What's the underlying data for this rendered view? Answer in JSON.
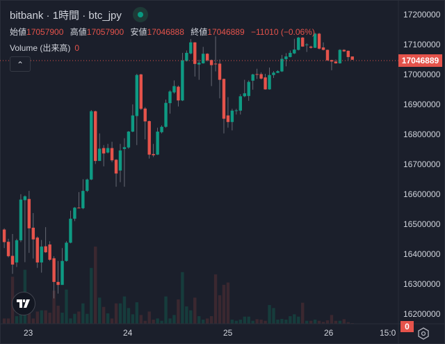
{
  "header": {
    "title": "bitbank · 1時間 · btc_jpy",
    "ohlc": [
      {
        "label": "始値",
        "value": "17057900"
      },
      {
        "label": "高値",
        "value": "17057900"
      },
      {
        "label": "安値",
        "value": "17046888"
      },
      {
        "label": "終値",
        "value": "17046889"
      }
    ],
    "change": "−11010 (−0.06%)",
    "volume_label": "Volume (出来高)",
    "volume_value": "0"
  },
  "price_axis": {
    "ticks": [
      "17200000",
      "17100000",
      "17000000",
      "16900000",
      "16800000",
      "16700000",
      "16600000",
      "16500000",
      "16400000",
      "16300000",
      "16200000"
    ],
    "last_price": "17046889",
    "volume_tag": "0"
  },
  "time_axis": {
    "ticks": [
      "23",
      "24",
      "25",
      "26",
      "15:0"
    ]
  },
  "colors": {
    "up": "#0e9a83",
    "down": "#e5534b",
    "up_vol": "#163c3c",
    "down_vol": "#3b2830",
    "background": "#1b1f2b"
  },
  "chart_data": {
    "type": "candlestick",
    "symbol": "btc_jpy",
    "interval": "1h",
    "unit_note": "OHLC values in thousands of JPY",
    "ylim": [
      16175000,
      17225000
    ],
    "candles_ohlc": [
      [
        16480,
        16484,
        16418,
        16438
      ],
      [
        16439,
        16449,
        16387,
        16391
      ],
      [
        16392,
        16465,
        16332,
        16363
      ],
      [
        16370,
        16449,
        16355,
        16444
      ],
      [
        16444,
        16598,
        16438,
        16580
      ],
      [
        16578,
        16594,
        16371,
        16591
      ],
      [
        16582,
        16609,
        16402,
        16484
      ],
      [
        16486,
        16535,
        16383,
        16447
      ],
      [
        16453,
        16457,
        16352,
        16370
      ],
      [
        16370,
        16445,
        16336,
        16423
      ],
      [
        16424,
        16488,
        16402,
        16404
      ],
      [
        16430,
        16441,
        16375,
        16379
      ],
      [
        16384,
        16391,
        16250,
        16305
      ],
      [
        16305,
        16375,
        16266,
        16295
      ],
      [
        16295,
        16418,
        16295,
        16375
      ],
      [
        16375,
        16441,
        16373,
        16436
      ],
      [
        16436,
        16543,
        16434,
        16516
      ],
      [
        16516,
        16555,
        16508,
        16553
      ],
      [
        16553,
        16605,
        16551,
        16552
      ],
      [
        16551,
        16648,
        16548,
        16609
      ],
      [
        16609,
        16650,
        16605,
        16647
      ],
      [
        16647,
        16879,
        16645,
        16875
      ],
      [
        16875,
        16877,
        16699,
        16709
      ],
      [
        16709,
        16801,
        16709,
        16750
      ],
      [
        16752,
        16762,
        16691,
        16734
      ],
      [
        16737,
        16766,
        16734,
        16752
      ],
      [
        16752,
        16773,
        16705,
        16711
      ],
      [
        16713,
        16715,
        16623,
        16667
      ],
      [
        16677,
        16766,
        16638,
        16744
      ],
      [
        16749,
        16785,
        16623,
        16755
      ],
      [
        16754,
        16809,
        16750,
        16807
      ],
      [
        16807,
        16898,
        16805,
        16861
      ],
      [
        16859,
        17000,
        16762,
        16996
      ],
      [
        16998,
        17000,
        16879,
        16883
      ],
      [
        16884,
        16889,
        16781,
        16841
      ],
      [
        16842,
        16844,
        16717,
        16730
      ],
      [
        16732,
        16766,
        16722,
        16728
      ],
      [
        16730,
        16820,
        16729,
        16807
      ],
      [
        16805,
        16828,
        16801,
        16823
      ],
      [
        16823,
        16914,
        16820,
        16903
      ],
      [
        16902,
        16945,
        16867,
        16941
      ],
      [
        16938,
        16978,
        16934,
        16959
      ],
      [
        16957,
        16961,
        16891,
        16911
      ],
      [
        16911,
        17070,
        16909,
        17045
      ],
      [
        17043,
        17078,
        17041,
        17070
      ],
      [
        17068,
        17116,
        17065,
        17105
      ],
      [
        17105,
        17106,
        16991,
        17033
      ],
      [
        17031,
        17047,
        16980,
        17037
      ],
      [
        17035,
        17090,
        17034,
        17067
      ],
      [
        17067,
        17069,
        17041,
        17045
      ],
      [
        17046,
        17048,
        16959,
        17029
      ],
      [
        17034,
        17125,
        17008,
        17033
      ],
      [
        17034,
        17048,
        16918,
        16980
      ],
      [
        16983,
        16984,
        16801,
        16850
      ],
      [
        16861,
        16922,
        16820,
        16839
      ],
      [
        16839,
        16883,
        16811,
        16877
      ],
      [
        16877,
        16883,
        16864,
        16878
      ],
      [
        16877,
        16932,
        16864,
        16925
      ],
      [
        16925,
        16980,
        16922,
        16935
      ],
      [
        16926,
        16978,
        16910,
        16973
      ],
      [
        16977,
        17000,
        16947,
        16998
      ],
      [
        16999,
        17017,
        16983,
        16997
      ],
      [
        16999,
        17005,
        16981,
        16984
      ],
      [
        16988,
        17000,
        16947,
        16948
      ],
      [
        16948,
        17021,
        16947,
        16996
      ],
      [
        16996,
        17009,
        16986,
        17004
      ],
      [
        17003,
        17012,
        17003,
        17009
      ],
      [
        17008,
        17063,
        17006,
        17050
      ],
      [
        17049,
        17069,
        17025,
        17058
      ],
      [
        17056,
        17078,
        17055,
        17070
      ],
      [
        17068,
        17117,
        17066,
        17081
      ],
      [
        17080,
        17123,
        17078,
        17121
      ],
      [
        17121,
        17123,
        17090,
        17091
      ],
      [
        17096,
        17102,
        17073,
        17098
      ],
      [
        17091,
        17094,
        17084,
        17087
      ],
      [
        17087,
        17137,
        17086,
        17134
      ],
      [
        17134,
        17137,
        17081,
        17084
      ],
      [
        17088,
        17105,
        17078,
        17080
      ],
      [
        17080,
        17081,
        17043,
        17045
      ],
      [
        17046,
        17047,
        17012,
        17041
      ],
      [
        17041,
        17048,
        17034,
        17035
      ],
      [
        17035,
        17082,
        17034,
        17080
      ],
      [
        17080,
        17082,
        17073,
        17075
      ],
      [
        17077,
        17078,
        17045,
        17056
      ],
      [
        17057.9,
        17057.9,
        17046.888,
        17046.889
      ]
    ],
    "volume_relative": [
      2.3,
      2.3,
      20.3,
      3.3,
      12.3,
      23.3,
      5.3,
      2.3,
      5.3,
      5.8,
      5.8,
      4.8,
      14.3,
      7.8,
      4.8,
      14.8,
      2.3,
      4.3,
      5.3,
      8.8,
      4.3,
      24.1,
      33.3,
      11.3,
      7.3,
      4.5,
      2.3,
      8.8,
      8.8,
      11.8,
      6.8,
      4.1,
      9.3,
      3.8,
      1.3,
      5.3,
      1.8,
      2.3,
      1.3,
      11.8,
      2.3,
      3.8,
      10.5,
      22.3,
      7.5,
      5.8,
      11.3,
      3.3,
      1.8,
      2.3,
      3.3,
      21.3,
      12.3,
      16.8,
      17.8,
      1.8,
      1.3,
      1.8,
      3.1,
      3.1,
      1.3,
      2.0,
      1.8,
      1.3,
      8.1,
      6.8,
      1.8,
      2.1,
      1.8,
      3.3,
      4.1,
      3.1,
      9.1,
      1.3,
      1.3,
      1.8,
      1.3,
      0.8,
      1.5,
      3.8,
      1.3,
      1.3,
      2.0,
      0.7,
      0.3
    ]
  }
}
